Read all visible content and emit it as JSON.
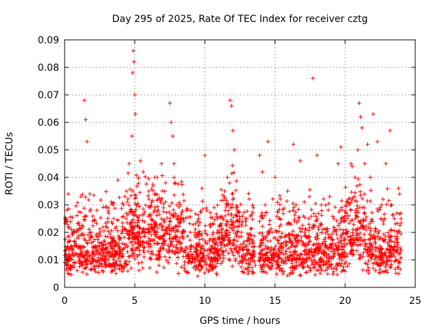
{
  "chart_data": {
    "type": "scatter",
    "title": "Day 295 of 2025, Rate Of TEC Index for receiver cztg",
    "xlabel": "GPS time / hours",
    "ylabel": "ROTI / TECUs",
    "xlim": [
      0,
      25
    ],
    "ylim": [
      0,
      0.09
    ],
    "x_ticks": [
      "0",
      "5",
      "10",
      "15",
      "20",
      "25"
    ],
    "y_ticks": [
      "0",
      "0.01",
      "0.02",
      "0.03",
      "0.04",
      "0.05",
      "0.06",
      "0.07",
      "0.08",
      "0.09"
    ],
    "grid": true,
    "legend": "none",
    "marker": "plus",
    "color": "#ff0000",
    "series": [
      {
        "x": [
          0.1,
          0.3,
          0.5,
          0.8,
          1.0,
          1.3,
          1.4,
          1.5,
          1.6,
          1.8,
          2.0,
          2.3,
          2.5,
          2.9,
          3.2,
          3.5,
          3.8,
          4.0,
          4.2,
          4.4,
          4.6,
          4.8,
          4.85,
          4.9,
          4.95,
          5.0,
          5.05,
          5.2,
          5.4,
          5.6,
          5.8,
          6.0,
          6.2,
          6.4,
          6.6,
          6.9,
          7.2,
          7.5,
          7.6,
          7.7,
          7.8,
          7.9,
          8.0,
          8.2,
          8.5,
          8.8,
          9.0,
          9.3,
          9.6,
          9.8,
          10.0,
          10.3,
          10.6,
          10.9,
          11.2,
          11.4,
          11.6,
          11.8,
          11.9,
          12.0,
          12.1,
          12.3,
          12.6,
          12.9,
          13.2,
          13.4,
          13.6,
          13.9,
          14.1,
          14.3,
          14.5,
          14.8,
          15.0,
          15.3,
          15.6,
          15.9,
          16.2,
          16.3,
          16.5,
          16.8,
          17.1,
          17.4,
          17.7,
          18.0,
          18.3,
          18.6,
          18.9,
          19.2,
          19.5,
          19.7,
          19.9,
          20.1,
          20.3,
          20.5,
          20.7,
          20.9,
          21.0,
          21.1,
          21.2,
          21.4,
          21.6,
          21.8,
          22.0,
          22.3,
          22.6,
          22.9,
          23.2,
          23.5,
          23.8
        ],
        "y": [
          0.01,
          0.012,
          0.015,
          0.009,
          0.018,
          0.022,
          0.068,
          0.061,
          0.053,
          0.034,
          0.012,
          0.028,
          0.01,
          0.014,
          0.011,
          0.025,
          0.039,
          0.013,
          0.03,
          0.035,
          0.045,
          0.055,
          0.078,
          0.086,
          0.082,
          0.07,
          0.063,
          0.03,
          0.046,
          0.042,
          0.02,
          0.035,
          0.031,
          0.028,
          0.04,
          0.025,
          0.038,
          0.067,
          0.06,
          0.055,
          0.045,
          0.038,
          0.03,
          0.018,
          0.024,
          0.012,
          0.028,
          0.02,
          0.015,
          0.036,
          0.048,
          0.014,
          0.02,
          0.025,
          0.018,
          0.035,
          0.04,
          0.068,
          0.066,
          0.057,
          0.05,
          0.028,
          0.02,
          0.015,
          0.012,
          0.01,
          0.008,
          0.048,
          0.042,
          0.03,
          0.053,
          0.02,
          0.04,
          0.025,
          0.012,
          0.035,
          0.015,
          0.052,
          0.03,
          0.046,
          0.012,
          0.025,
          0.076,
          0.048,
          0.03,
          0.018,
          0.033,
          0.025,
          0.045,
          0.051,
          0.012,
          0.02,
          0.03,
          0.044,
          0.04,
          0.05,
          0.067,
          0.062,
          0.058,
          0.045,
          0.052,
          0.04,
          0.063,
          0.053,
          0.03,
          0.045,
          0.057,
          0.025,
          0.036
        ]
      }
    ]
  }
}
